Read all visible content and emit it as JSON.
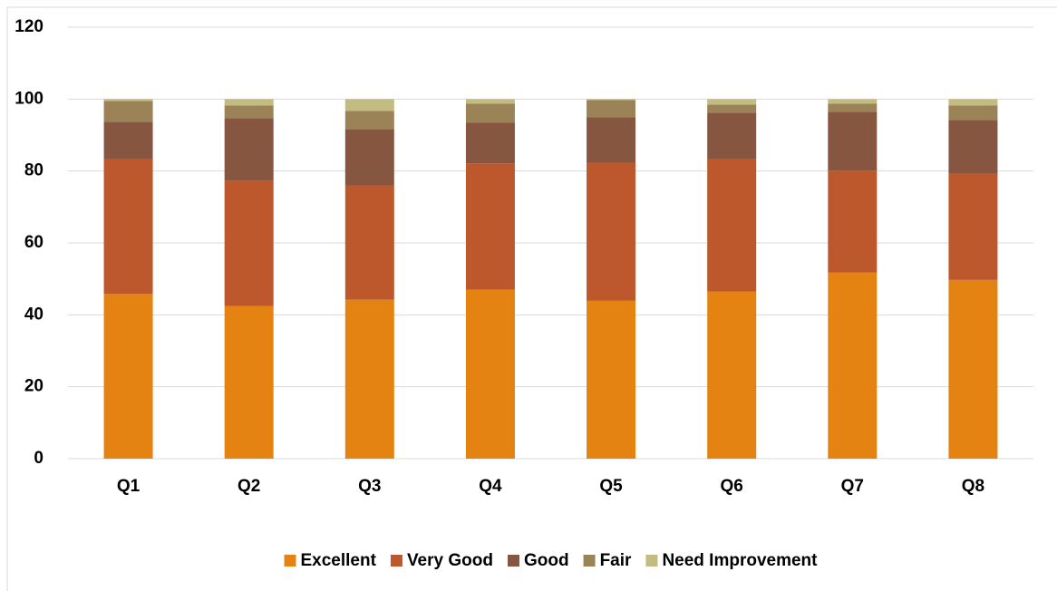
{
  "chart_data": {
    "type": "stacked_bar",
    "categories": [
      "Q1",
      "Q2",
      "Q3",
      "Q4",
      "Q5",
      "Q6",
      "Q7",
      "Q8"
    ],
    "series": [
      {
        "name": "Excellent",
        "color": "#e48312",
        "values": [
          45.8,
          42.4,
          44.2,
          47.0,
          43.9,
          46.5,
          51.8,
          49.7
        ]
      },
      {
        "name": "Very Good",
        "color": "#bd582c",
        "values": [
          37.5,
          34.9,
          31.8,
          35.1,
          38.4,
          36.8,
          28.3,
          29.6
        ]
      },
      {
        "name": "Good",
        "color": "#865640",
        "values": [
          10.4,
          17.4,
          15.7,
          11.3,
          12.7,
          12.9,
          16.4,
          14.9
        ]
      },
      {
        "name": "Fair",
        "color": "#9b8357",
        "values": [
          5.8,
          3.5,
          5.0,
          5.3,
          4.7,
          2.3,
          2.2,
          4.0
        ]
      },
      {
        "name": "Need Improvement",
        "color": "#c2bc80",
        "values": [
          0.5,
          1.8,
          3.3,
          1.3,
          0.3,
          1.5,
          1.3,
          1.8
        ]
      }
    ],
    "ylim": [
      0,
      120
    ],
    "yticks": [
      0,
      20,
      40,
      60,
      80,
      100,
      120
    ],
    "grid": true,
    "legend": "bottom"
  }
}
